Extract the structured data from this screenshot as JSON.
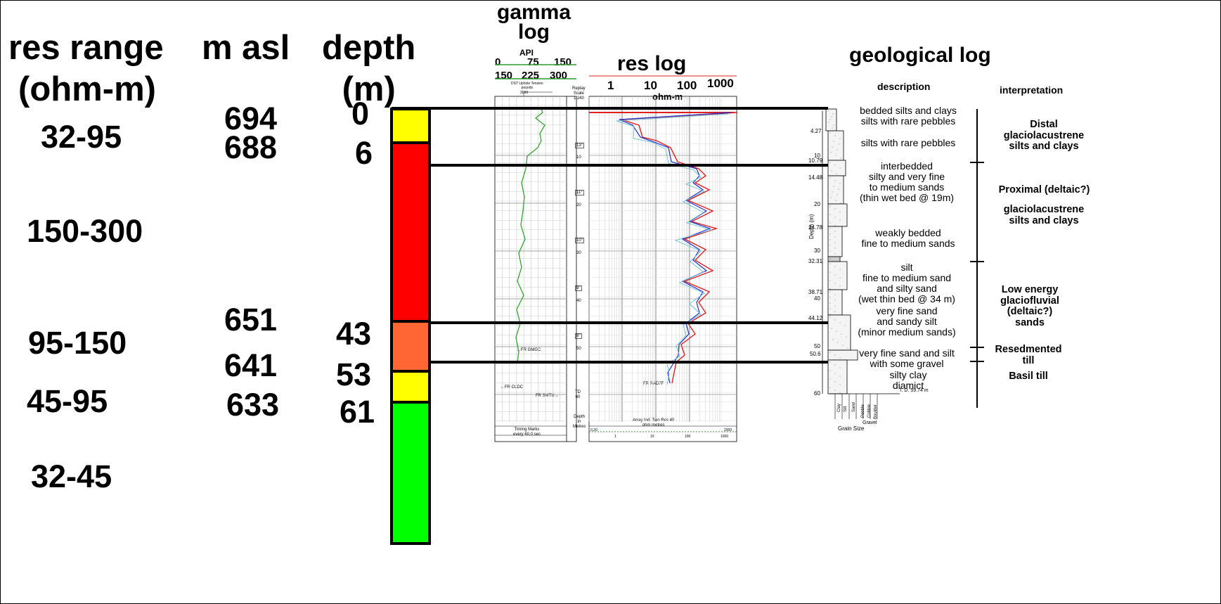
{
  "headers": {
    "res_range": [
      "res range",
      "(ohm-m)"
    ],
    "m_asl": "m asl",
    "depth": [
      "depth",
      "(m)"
    ]
  },
  "res_ranges": [
    "32-95",
    "150-300",
    "95-150",
    "45-95",
    "32-45"
  ],
  "m_asl_values": [
    "694",
    "688",
    "651",
    "641",
    "633"
  ],
  "depth_values": [
    "0",
    "6",
    "43",
    "53",
    "61"
  ],
  "resistivity_column": [
    {
      "top_m": 0,
      "bottom_m": 6,
      "color": "#ffff00"
    },
    {
      "top_m": 6,
      "bottom_m": 43,
      "color": "#ff0000"
    },
    {
      "top_m": 43,
      "bottom_m": 53,
      "color": "#ff6633"
    },
    {
      "top_m": 53,
      "bottom_m": 61,
      "color": "#ffff00"
    },
    {
      "top_m": 61,
      "bottom_m": null,
      "color": "#00ff00"
    }
  ],
  "gamma_log": {
    "title": [
      "gamma",
      "log"
    ],
    "api_label": "API",
    "scale_top": [
      "0",
      "75",
      "150"
    ],
    "scale_bottom": [
      "150",
      "225",
      "300"
    ],
    "tension_label": [
      "DST Uphole Tension",
      "pounds"
    ],
    "tension_value": "3000",
    "replay_label": [
      "Replay",
      "Scale",
      "1:240"
    ],
    "depth_marks": [
      "10",
      "20",
      "30",
      "40",
      "50"
    ],
    "angle_marks": [
      "13°",
      "11°",
      "10°",
      "9°",
      "8°"
    ],
    "td_label": [
      "TD",
      "60"
    ],
    "depth_in_metres": [
      "Depth",
      "in",
      "Metres"
    ],
    "timing_marks": [
      "Timing Marks",
      "every 60.0 sec"
    ],
    "annotations": [
      "←FR GMGC",
      "←FR CLDC",
      "FR SMTU→"
    ]
  },
  "res_log": {
    "title": "res log",
    "scale_ticks": [
      "1",
      "10",
      "100",
      "1000"
    ],
    "unit": "ohm-m",
    "footer": [
      "Array Ind. Two Res 40",
      "ohm metres"
    ],
    "footer_ticks": [
      "0.20",
      "1",
      "10",
      "100",
      "1000",
      "2000"
    ],
    "annotation": "FR RAD7F"
  },
  "geological_log": {
    "title": "geological log",
    "description_header": "description",
    "interpretation_header": "interpretation",
    "depth_axis_label": "Depth (m)",
    "depth_ticks": [
      "4.27",
      "10",
      "10.79",
      "14.48",
      "20",
      "24.78",
      "30",
      "32.31",
      "38.71",
      "40",
      "44.12",
      "50",
      "50.6",
      "60"
    ],
    "td_label": "T. D. 59.74 m",
    "descriptions": [
      [
        "bedded silts and clays",
        "silts with rare pebbles"
      ],
      [
        "silts with rare pebbles"
      ],
      [
        "interbedded",
        "silty and very fine",
        "to medium sands",
        "(thin wet bed @ 19m)"
      ],
      [
        "weakly bedded",
        "fine to medium sands"
      ],
      [
        "silt",
        "fine to medium sand",
        "and silty sand",
        "(wet thin bed @ 34 m)"
      ],
      [
        "very fine sand",
        "and sandy silt",
        "(minor medium sands)"
      ],
      [
        "very fine sand and silt",
        "with some gravel"
      ],
      [
        "silty clay",
        "diamict"
      ]
    ],
    "interpretations": [
      [
        "Distal",
        "glaciolacustrene",
        "silts and clays"
      ],
      [
        "Proximal (deltaic?)"
      ],
      [
        "glaciolacustrene",
        "silts and clays"
      ],
      [
        "Low energy",
        "glaciofluvial",
        "(deltaic?)",
        "sands"
      ],
      [
        "Resedmented",
        "till"
      ],
      [
        "Basil till"
      ]
    ],
    "grain_size": {
      "labels": [
        "Clay",
        "Silt",
        "Sand",
        "Pebble",
        "Cobble",
        "Boulder"
      ],
      "group": "Gravel",
      "caption": "Grain Size"
    }
  }
}
